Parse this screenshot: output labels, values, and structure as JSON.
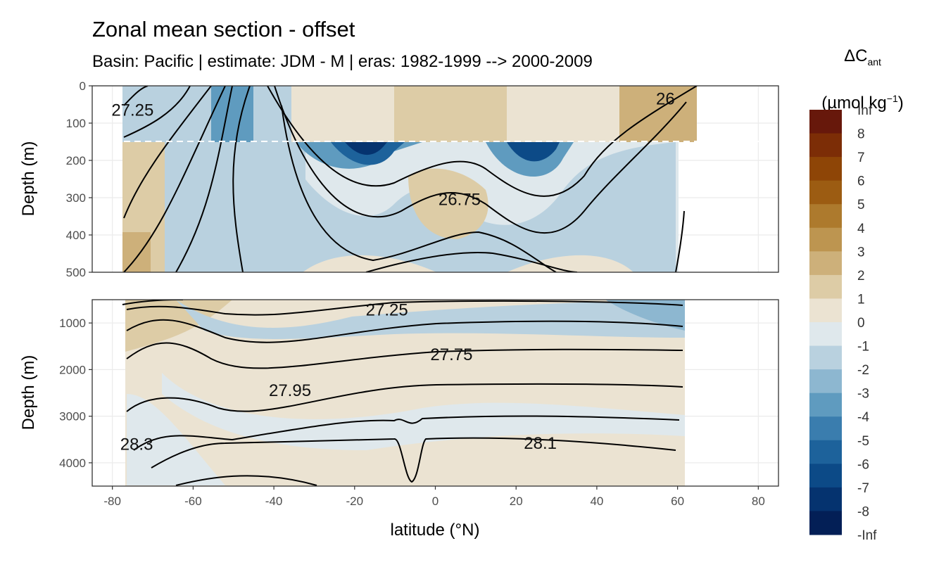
{
  "title": "Zonal mean section - offset",
  "subtitle": "Basin: Pacific | estimate: JDM - M | eras: 1982-1999 --> 2000-2009",
  "legend": {
    "title_main": "ΔC",
    "title_sub": "ant",
    "unit_pre": "(µmol kg",
    "unit_sup": "−1",
    "unit_post": ")",
    "labels": [
      "Inf",
      "8",
      "7",
      "6",
      "5",
      "4",
      "3",
      "2",
      "1",
      "0",
      "-1",
      "-2",
      "-3",
      "-4",
      "-5",
      "-6",
      "-7",
      "-8",
      "-Inf"
    ],
    "colors": [
      "#67180b",
      "#7c2d06",
      "#8e4506",
      "#9c5c12",
      "#ad7a2d",
      "#bd9550",
      "#cdb07a",
      "#ddcca6",
      "#ebe3d2",
      "#dfe8ec",
      "#b9d1df",
      "#8db7d0",
      "#5f9bbf",
      "#3a7dae",
      "#1d629b",
      "#0c4a87",
      "#05336f",
      "#031f56"
    ]
  },
  "chart_data": [
    {
      "type": "heatmap",
      "panel": "upper",
      "ylabel": "Depth (m)",
      "xlim": [
        -85,
        85
      ],
      "ylim": [
        500,
        0
      ],
      "yticks": [
        0,
        100,
        200,
        300,
        400,
        500
      ],
      "ytick_labels": [
        "0",
        "100",
        "200",
        "300",
        "400",
        "500"
      ],
      "reference_line_depth": 150,
      "contour_labels": [
        {
          "text": "27.25",
          "x": -75,
          "y": 65
        },
        {
          "text": "26",
          "x": 57,
          "y": 35
        },
        {
          "text": "26.75",
          "x": 6,
          "y": 305
        }
      ]
    },
    {
      "type": "heatmap",
      "panel": "lower",
      "ylabel": "Depth (m)",
      "xlabel": "latitude (°N)",
      "xlim": [
        -85,
        85
      ],
      "ylim": [
        4500,
        500
      ],
      "xticks": [
        -80,
        -60,
        -40,
        -20,
        0,
        20,
        40,
        60,
        80
      ],
      "xtick_labels": [
        "-80",
        "-60",
        "-40",
        "-20",
        "0",
        "20",
        "40",
        "60",
        "80"
      ],
      "yticks": [
        1000,
        2000,
        3000,
        4000
      ],
      "ytick_labels": [
        "1000",
        "2000",
        "3000",
        "4000"
      ],
      "contour_labels": [
        {
          "text": "27.25",
          "x": -12,
          "y": 720
        },
        {
          "text": "27.75",
          "x": 4,
          "y": 1680
        },
        {
          "text": "27.95",
          "x": -36,
          "y": 2450
        },
        {
          "text": "28.3",
          "x": -74,
          "y": 3600
        },
        {
          "text": "28.1",
          "x": 26,
          "y": 3580
        }
      ]
    }
  ]
}
